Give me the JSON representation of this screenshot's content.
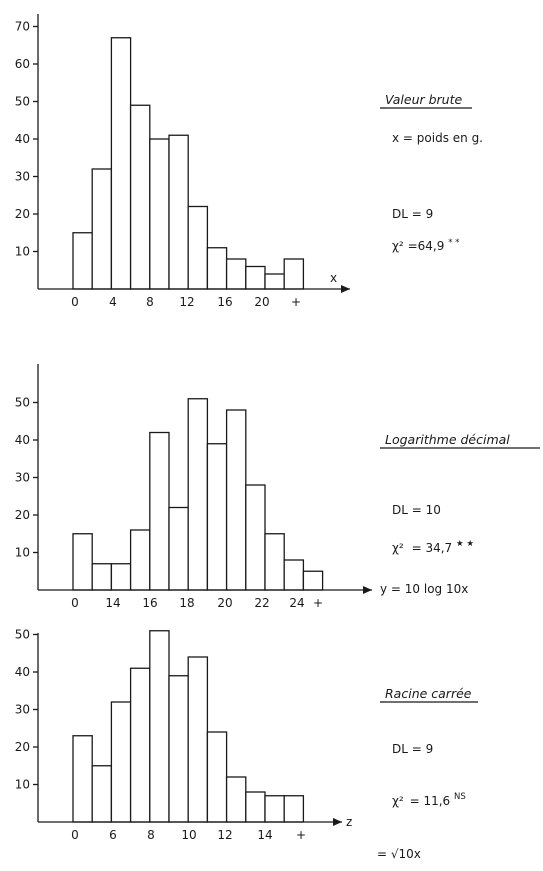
{
  "chart_data": [
    {
      "type": "bar",
      "title": "Valeur brute",
      "xlabel": "x",
      "axis_formula": "",
      "variable_note": "x = poids en g.",
      "dl": "DL = 9",
      "chi2_label": "χ²",
      "chi2_value": "=64,9",
      "chi2_sig": "* *",
      "ylim": [
        0,
        75
      ],
      "yticks": [
        10,
        20,
        30,
        40,
        50,
        60,
        70
      ],
      "xtick_labels": [
        "0",
        "4",
        "8",
        "12",
        "16",
        "20",
        "+"
      ],
      "values": [
        15,
        32,
        67,
        49,
        40,
        41,
        22,
        11,
        8,
        6,
        4,
        8
      ]
    },
    {
      "type": "bar",
      "title": "Logarithme décimal",
      "xlabel": "",
      "axis_formula": "y = 10 log 10x",
      "variable_note": "",
      "dl": "DL = 10",
      "chi2_label": "χ²",
      "chi2_value": "= 34,7",
      "chi2_sig": "★ ★",
      "ylim": [
        0,
        60
      ],
      "yticks": [
        10,
        20,
        30,
        40,
        50
      ],
      "xtick_labels": [
        "0",
        "14",
        "16",
        "18",
        "20",
        "22",
        "24",
        "+"
      ],
      "values": [
        15,
        7,
        7,
        16,
        42,
        22,
        51,
        39,
        48,
        28,
        15,
        8,
        5
      ]
    },
    {
      "type": "bar",
      "title": "Racine carrée",
      "xlabel": "z",
      "axis_formula": "= √10x",
      "variable_note": "",
      "dl": "DL = 9",
      "chi2_label": "χ²",
      "chi2_value": "= 11,6",
      "chi2_sig": "NS",
      "ylim": [
        0,
        60
      ],
      "yticks": [
        10,
        20,
        30,
        40,
        50
      ],
      "xtick_labels": [
        "0",
        "6",
        "8",
        "10",
        "12",
        "14",
        "+"
      ],
      "values": [
        23,
        15,
        32,
        41,
        51,
        39,
        44,
        24,
        12,
        8,
        7,
        7
      ]
    }
  ]
}
